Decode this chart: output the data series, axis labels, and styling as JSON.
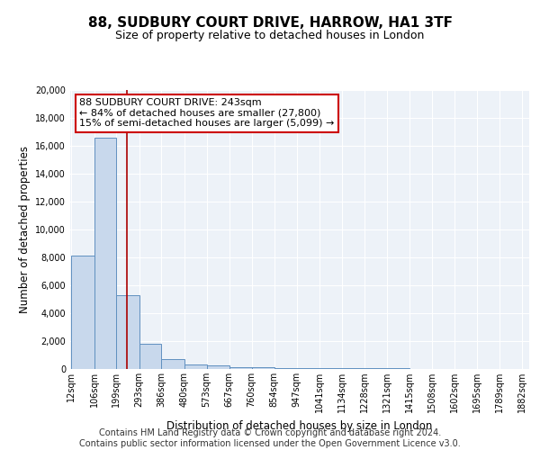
{
  "title1": "88, SUDBURY COURT DRIVE, HARROW, HA1 3TF",
  "title2": "Size of property relative to detached houses in London",
  "xlabel": "Distribution of detached houses by size in London",
  "ylabel": "Number of detached properties",
  "annotation_line1": "88 SUDBURY COURT DRIVE: 243sqm",
  "annotation_line2": "← 84% of detached houses are smaller (27,800)",
  "annotation_line3": "15% of semi-detached houses are larger (5,099) →",
  "footer1": "Contains HM Land Registry data © Crown copyright and database right 2024.",
  "footer2": "Contains public sector information licensed under the Open Government Licence v3.0.",
  "bar_edges": [
    12,
    106,
    199,
    293,
    386,
    480,
    573,
    667,
    760,
    854,
    947,
    1041,
    1134,
    1228,
    1321,
    1415,
    1508,
    1602,
    1695,
    1789,
    1882
  ],
  "bar_heights": [
    8100,
    16600,
    5300,
    1800,
    700,
    350,
    230,
    150,
    100,
    80,
    65,
    55,
    45,
    40,
    35,
    30,
    25,
    20,
    15,
    10
  ],
  "bar_color": "#c8d8ec",
  "bar_edge_color": "#6090c0",
  "property_line_x": 243,
  "property_line_color": "#aa0000",
  "annotation_box_color": "white",
  "annotation_box_edge_color": "#cc0000",
  "background_color": "#edf2f8",
  "grid_color": "#ffffff",
  "ylim": [
    0,
    20000
  ],
  "yticks": [
    0,
    2000,
    4000,
    6000,
    8000,
    10000,
    12000,
    14000,
    16000,
    18000,
    20000
  ],
  "tick_labels": [
    "12sqm",
    "106sqm",
    "199sqm",
    "293sqm",
    "386sqm",
    "480sqm",
    "573sqm",
    "667sqm",
    "760sqm",
    "854sqm",
    "947sqm",
    "1041sqm",
    "1134sqm",
    "1228sqm",
    "1321sqm",
    "1415sqm",
    "1508sqm",
    "1602sqm",
    "1695sqm",
    "1789sqm",
    "1882sqm"
  ],
  "title1_fontsize": 11,
  "title2_fontsize": 9,
  "axis_label_fontsize": 8.5,
  "tick_fontsize": 7,
  "annotation_fontsize": 8,
  "footer_fontsize": 7
}
